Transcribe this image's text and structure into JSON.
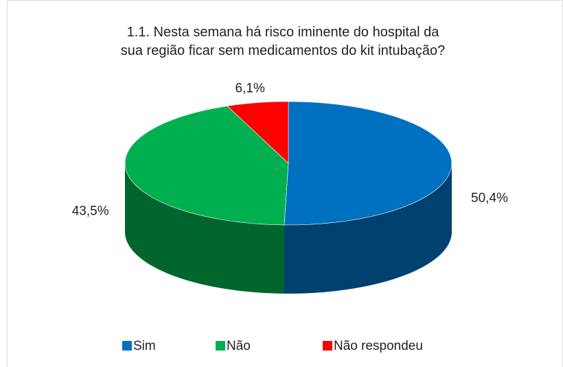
{
  "chart_data": {
    "type": "pie",
    "title": "1.1. Nesta semana há risco iminente do hospital da sua região ficar sem medicamentos do kit intubação?",
    "categories": [
      "Sim",
      "Não",
      "Não respondeu"
    ],
    "values": [
      50.4,
      43.5,
      6.1
    ],
    "value_labels": [
      "50,4%",
      "43,5%",
      "6,1%"
    ],
    "colors": [
      "#0070c0",
      "#00b050",
      "#ff0000"
    ],
    "legend": "bottom"
  }
}
